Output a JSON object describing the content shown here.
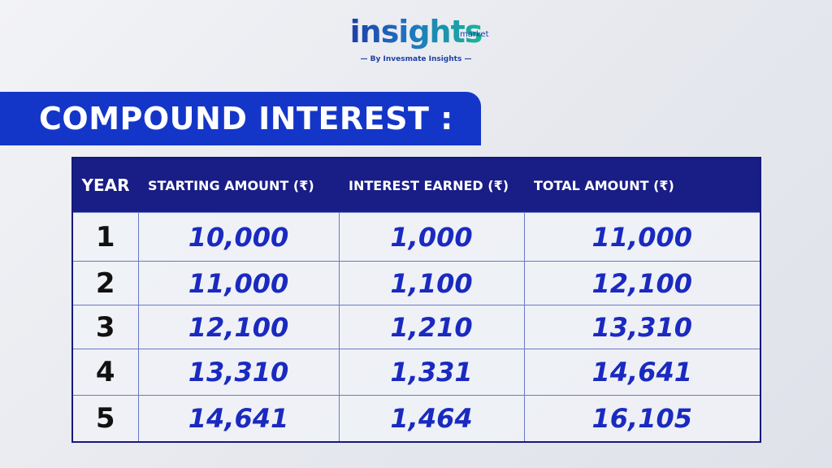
{
  "header": {
    "logo": "insights",
    "logo_sub": "market",
    "tagline": "By Invesmate Insights"
  },
  "title": "COMPOUND INTEREST :",
  "table": {
    "columns": [
      "YEAR",
      "STARTING AMOUNT (₹)",
      "INTEREST EARNED (₹)",
      "TOTAL AMOUNT (₹)"
    ],
    "rows": [
      [
        "1",
        "10,000",
        "1,000",
        "11,000"
      ],
      [
        "2",
        "11,000",
        "1,100",
        "12,100"
      ],
      [
        "3",
        "12,100",
        "1,210",
        "13,310"
      ],
      [
        "4",
        "13,310",
        "1,331",
        "14,641"
      ],
      [
        "5",
        "14,641",
        "1,464",
        "16,105"
      ]
    ]
  }
}
